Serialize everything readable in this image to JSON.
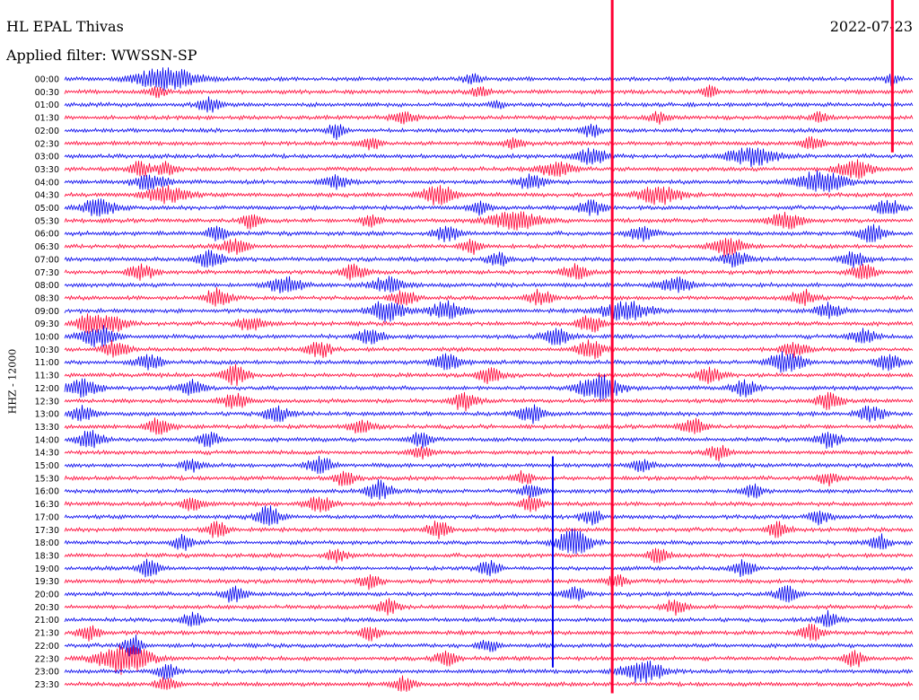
{
  "header": {
    "station": "HL EPAL Thivas",
    "filter": "Applied filter: WWSSN-SP",
    "date": "2022-07-23",
    "channel": "HHZ - 12000"
  },
  "colors": {
    "blue": "#0000ee",
    "red": "#ff0033",
    "text": "#000000"
  },
  "chart_data": {
    "type": "line",
    "title": "HL EPAL Thivas",
    "subtitle": "Applied filter: WWSSN-SP",
    "date": "2022-07-23",
    "ylabel": "HHZ - 12000",
    "x_span_minutes": 30,
    "line_colors_alternate": [
      "blue",
      "red"
    ],
    "rows": [
      {
        "label": "00:00",
        "events": [
          [
            0.12,
            0.9,
            0.035
          ],
          [
            0.48,
            0.35,
            0.01
          ],
          [
            0.975,
            0.5,
            0.008
          ]
        ]
      },
      {
        "label": "00:30",
        "events": [
          [
            0.11,
            0.4,
            0.01
          ],
          [
            0.49,
            0.45,
            0.01
          ],
          [
            0.76,
            0.5,
            0.008
          ]
        ]
      },
      {
        "label": "01:00",
        "events": [
          [
            0.17,
            0.6,
            0.012
          ],
          [
            0.51,
            0.3,
            0.01
          ]
        ]
      },
      {
        "label": "01:30",
        "events": [
          [
            0.4,
            0.5,
            0.015
          ],
          [
            0.7,
            0.4,
            0.012
          ],
          [
            0.89,
            0.4,
            0.01
          ]
        ]
      },
      {
        "label": "02:00",
        "events": [
          [
            0.32,
            0.6,
            0.01
          ],
          [
            0.62,
            0.5,
            0.01
          ]
        ]
      },
      {
        "label": "02:30",
        "events": [
          [
            0.36,
            0.5,
            0.012
          ],
          [
            0.53,
            0.4,
            0.012
          ],
          [
            0.88,
            0.5,
            0.012
          ]
        ]
      },
      {
        "label": "03:00",
        "events": [
          [
            0.62,
            0.6,
            0.02
          ],
          [
            0.81,
            0.7,
            0.03
          ]
        ]
      },
      {
        "label": "03:30",
        "events": [
          [
            0.09,
            0.6,
            0.012
          ],
          [
            0.12,
            0.5,
            0.012
          ],
          [
            0.58,
            0.6,
            0.02
          ],
          [
            0.93,
            0.8,
            0.02
          ]
        ]
      },
      {
        "label": "04:00",
        "events": [
          [
            0.1,
            0.6,
            0.02
          ],
          [
            0.32,
            0.5,
            0.015
          ],
          [
            0.55,
            0.6,
            0.015
          ],
          [
            0.89,
            0.8,
            0.03
          ]
        ]
      },
      {
        "label": "04:30",
        "events": [
          [
            0.12,
            0.7,
            0.025
          ],
          [
            0.44,
            0.8,
            0.02
          ],
          [
            0.7,
            0.7,
            0.025
          ]
        ]
      },
      {
        "label": "05:00",
        "events": [
          [
            0.04,
            0.7,
            0.02
          ],
          [
            0.49,
            0.6,
            0.012
          ],
          [
            0.62,
            0.6,
            0.015
          ],
          [
            0.97,
            0.6,
            0.015
          ]
        ]
      },
      {
        "label": "05:30",
        "events": [
          [
            0.22,
            0.6,
            0.012
          ],
          [
            0.36,
            0.5,
            0.012
          ],
          [
            0.53,
            0.8,
            0.03
          ],
          [
            0.85,
            0.6,
            0.02
          ]
        ]
      },
      {
        "label": "06:00",
        "events": [
          [
            0.18,
            0.7,
            0.012
          ],
          [
            0.45,
            0.6,
            0.015
          ],
          [
            0.68,
            0.6,
            0.015
          ],
          [
            0.95,
            0.7,
            0.015
          ]
        ]
      },
      {
        "label": "06:30",
        "events": [
          [
            0.2,
            0.6,
            0.015
          ],
          [
            0.48,
            0.6,
            0.012
          ],
          [
            0.78,
            0.7,
            0.02
          ]
        ]
      },
      {
        "label": "07:00",
        "events": [
          [
            0.17,
            0.7,
            0.015
          ],
          [
            0.51,
            0.6,
            0.012
          ],
          [
            0.79,
            0.6,
            0.015
          ],
          [
            0.93,
            0.6,
            0.015
          ]
        ]
      },
      {
        "label": "07:30",
        "events": [
          [
            0.09,
            0.6,
            0.015
          ],
          [
            0.34,
            0.6,
            0.015
          ],
          [
            0.6,
            0.6,
            0.015
          ],
          [
            0.94,
            0.6,
            0.015
          ]
        ]
      },
      {
        "label": "08:00",
        "events": [
          [
            0.26,
            0.7,
            0.02
          ],
          [
            0.38,
            0.6,
            0.02
          ],
          [
            0.72,
            0.6,
            0.02
          ]
        ]
      },
      {
        "label": "08:30",
        "events": [
          [
            0.18,
            0.7,
            0.015
          ],
          [
            0.4,
            0.6,
            0.015
          ],
          [
            0.56,
            0.6,
            0.015
          ],
          [
            0.87,
            0.6,
            0.015
          ]
        ]
      },
      {
        "label": "09:00",
        "events": [
          [
            0.38,
            0.8,
            0.02
          ],
          [
            0.45,
            0.7,
            0.02
          ],
          [
            0.66,
            0.7,
            0.03
          ],
          [
            0.9,
            0.6,
            0.015
          ]
        ]
      },
      {
        "label": "09:30",
        "events": [
          [
            0.03,
            0.8,
            0.015
          ],
          [
            0.06,
            0.6,
            0.015
          ],
          [
            0.22,
            0.6,
            0.015
          ],
          [
            0.62,
            0.7,
            0.015
          ]
        ]
      },
      {
        "label": "10:00",
        "events": [
          [
            0.04,
            0.8,
            0.02
          ],
          [
            0.36,
            0.6,
            0.015
          ],
          [
            0.58,
            0.7,
            0.015
          ],
          [
            0.94,
            0.6,
            0.015
          ]
        ]
      },
      {
        "label": "10:30",
        "events": [
          [
            0.06,
            0.7,
            0.015
          ],
          [
            0.3,
            0.6,
            0.015
          ],
          [
            0.62,
            0.8,
            0.015
          ],
          [
            0.86,
            0.6,
            0.015
          ]
        ]
      },
      {
        "label": "11:00",
        "events": [
          [
            0.1,
            0.6,
            0.015
          ],
          [
            0.45,
            0.7,
            0.015
          ],
          [
            0.85,
            0.8,
            0.02
          ],
          [
            0.97,
            0.6,
            0.015
          ]
        ]
      },
      {
        "label": "11:30",
        "events": [
          [
            0.2,
            0.8,
            0.015
          ],
          [
            0.5,
            0.6,
            0.015
          ],
          [
            0.76,
            0.6,
            0.015
          ]
        ]
      },
      {
        "label": "12:00",
        "events": [
          [
            0.02,
            0.7,
            0.02
          ],
          [
            0.15,
            0.6,
            0.015
          ],
          [
            0.63,
            1.0,
            0.025
          ],
          [
            0.8,
            0.6,
            0.015
          ]
        ]
      },
      {
        "label": "12:30",
        "events": [
          [
            0.2,
            0.6,
            0.015
          ],
          [
            0.47,
            0.7,
            0.015
          ],
          [
            0.9,
            0.6,
            0.015
          ]
        ]
      },
      {
        "label": "13:00",
        "events": [
          [
            0.02,
            0.6,
            0.015
          ],
          [
            0.25,
            0.6,
            0.015
          ],
          [
            0.55,
            0.7,
            0.015
          ],
          [
            0.95,
            0.6,
            0.015
          ]
        ]
      },
      {
        "label": "13:30",
        "events": [
          [
            0.11,
            0.6,
            0.015
          ],
          [
            0.35,
            0.5,
            0.015
          ],
          [
            0.74,
            0.6,
            0.015
          ]
        ]
      },
      {
        "label": "14:00",
        "events": [
          [
            0.03,
            0.7,
            0.015
          ],
          [
            0.17,
            0.6,
            0.012
          ],
          [
            0.42,
            0.6,
            0.012
          ],
          [
            0.9,
            0.6,
            0.015
          ]
        ]
      },
      {
        "label": "14:30",
        "events": [
          [
            0.42,
            0.5,
            0.012
          ],
          [
            0.77,
            0.6,
            0.012
          ]
        ]
      },
      {
        "label": "15:00",
        "events": [
          [
            0.15,
            0.5,
            0.012
          ],
          [
            0.3,
            0.7,
            0.015
          ],
          [
            0.68,
            0.5,
            0.012
          ]
        ]
      },
      {
        "label": "15:30",
        "events": [
          [
            0.33,
            0.6,
            0.012
          ],
          [
            0.54,
            0.5,
            0.012
          ],
          [
            0.9,
            0.5,
            0.012
          ]
        ]
      },
      {
        "label": "16:00",
        "events": [
          [
            0.37,
            0.8,
            0.015
          ],
          [
            0.55,
            0.5,
            0.012
          ],
          [
            0.81,
            0.6,
            0.012
          ]
        ]
      },
      {
        "label": "16:30",
        "events": [
          [
            0.15,
            0.6,
            0.012
          ],
          [
            0.3,
            0.7,
            0.015
          ],
          [
            0.55,
            0.6,
            0.012
          ]
        ]
      },
      {
        "label": "17:00",
        "events": [
          [
            0.24,
            0.8,
            0.015
          ],
          [
            0.62,
            0.6,
            0.012
          ],
          [
            0.89,
            0.6,
            0.012
          ]
        ]
      },
      {
        "label": "17:30",
        "events": [
          [
            0.18,
            0.6,
            0.012
          ],
          [
            0.44,
            0.7,
            0.012
          ],
          [
            0.84,
            0.6,
            0.012
          ]
        ]
      },
      {
        "label": "18:00",
        "events": [
          [
            0.14,
            0.6,
            0.012
          ],
          [
            0.6,
            1.0,
            0.02
          ],
          [
            0.96,
            0.6,
            0.012
          ]
        ]
      },
      {
        "label": "18:30",
        "events": [
          [
            0.32,
            0.5,
            0.012
          ],
          [
            0.7,
            0.6,
            0.012
          ]
        ]
      },
      {
        "label": "19:00",
        "events": [
          [
            0.1,
            0.7,
            0.012
          ],
          [
            0.5,
            0.6,
            0.012
          ],
          [
            0.8,
            0.7,
            0.012
          ]
        ]
      },
      {
        "label": "19:30",
        "events": [
          [
            0.36,
            0.6,
            0.012
          ],
          [
            0.65,
            0.5,
            0.012
          ]
        ]
      },
      {
        "label": "20:00",
        "events": [
          [
            0.2,
            0.7,
            0.012
          ],
          [
            0.6,
            0.6,
            0.012
          ],
          [
            0.85,
            0.7,
            0.012
          ]
        ]
      },
      {
        "label": "20:30",
        "events": [
          [
            0.38,
            0.6,
            0.012
          ],
          [
            0.72,
            0.6,
            0.012
          ]
        ]
      },
      {
        "label": "21:00",
        "events": [
          [
            0.15,
            0.6,
            0.012
          ],
          [
            0.9,
            0.6,
            0.012
          ]
        ]
      },
      {
        "label": "21:30",
        "events": [
          [
            0.03,
            0.6,
            0.012
          ],
          [
            0.36,
            0.6,
            0.012
          ],
          [
            0.88,
            0.7,
            0.012
          ]
        ]
      },
      {
        "label": "22:00",
        "events": [
          [
            0.08,
            0.8,
            0.012
          ],
          [
            0.5,
            0.5,
            0.012
          ]
        ]
      },
      {
        "label": "22:30",
        "events": [
          [
            0.07,
            1.2,
            0.03
          ],
          [
            0.45,
            0.6,
            0.012
          ],
          [
            0.93,
            0.7,
            0.012
          ]
        ]
      },
      {
        "label": "23:00",
        "events": [
          [
            0.12,
            0.6,
            0.012
          ],
          [
            0.68,
            0.9,
            0.025
          ]
        ]
      },
      {
        "label": "23:30",
        "events": [
          [
            0.12,
            0.6,
            0.012
          ],
          [
            0.4,
            0.6,
            0.012
          ]
        ]
      }
    ],
    "vertical_spikes": [
      {
        "x": 0.645,
        "rows": [
          0,
          47
        ],
        "color": "red"
      },
      {
        "x": 0.575,
        "rows": [
          30,
          45
        ],
        "color": "blue"
      },
      {
        "x": 0.975,
        "rows": [
          0,
          5
        ],
        "color": "red"
      }
    ]
  }
}
